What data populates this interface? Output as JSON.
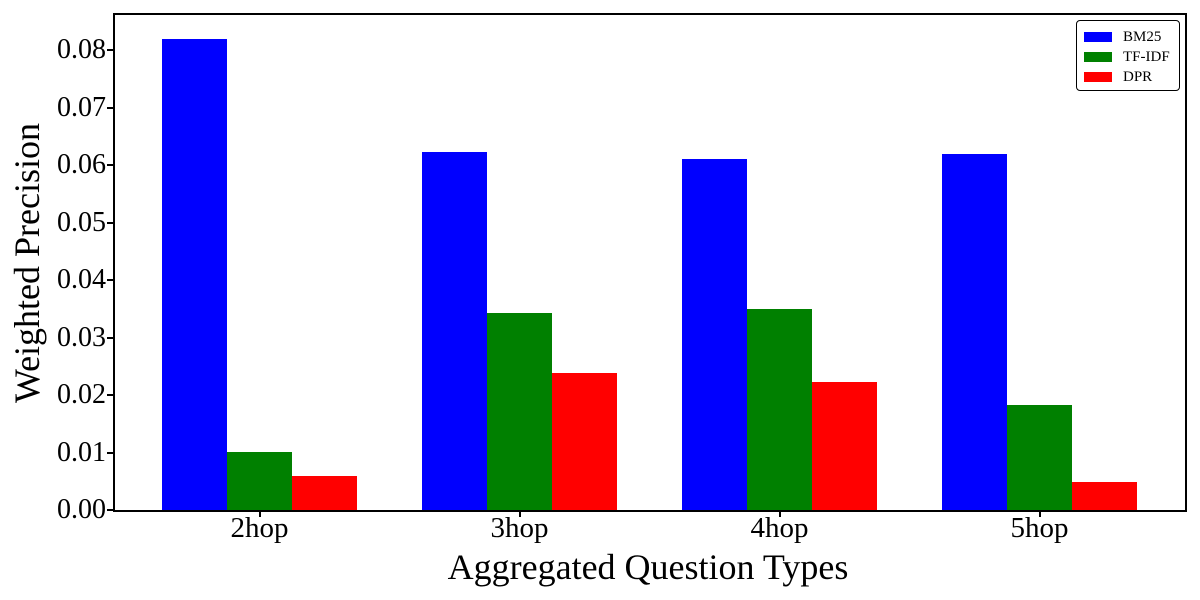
{
  "chart_data": {
    "type": "bar",
    "title": "",
    "xlabel": "Aggregated Question Types",
    "ylabel": "Weighted Precision",
    "categories": [
      "2hop",
      "3hop",
      "4hop",
      "5hop"
    ],
    "series": [
      {
        "name": "BM25",
        "color": "#0000ff",
        "values": [
          0.082,
          0.0623,
          0.061,
          0.062
        ]
      },
      {
        "name": "TF-IDF",
        "color": "#008000",
        "values": [
          0.0101,
          0.0343,
          0.0349,
          0.0183
        ]
      },
      {
        "name": "DPR",
        "color": "#ff0000",
        "values": [
          0.0059,
          0.0238,
          0.0222,
          0.0049
        ]
      }
    ],
    "ylim": [
      0,
      0.0861
    ],
    "yticks": [
      "0.00",
      "0.01",
      "0.02",
      "0.03",
      "0.04",
      "0.05",
      "0.06",
      "0.07",
      "0.08"
    ],
    "grid": false,
    "legend_position": "upper right",
    "background_color": "#ffffff",
    "axis_color": "#000000"
  }
}
